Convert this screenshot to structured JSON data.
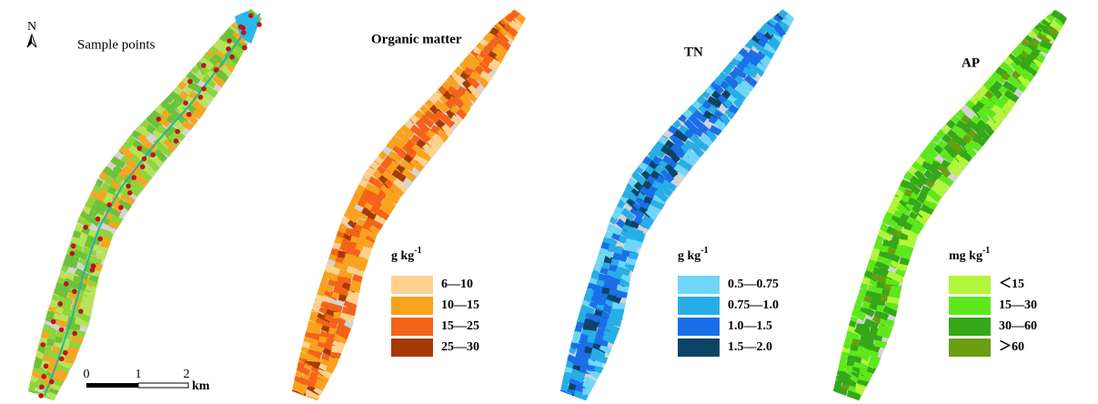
{
  "north": "N",
  "panels": [
    {
      "title": "Sample points"
    },
    {
      "title": "Organic matter",
      "unit": {
        "base": "g kg",
        "exp": "-1"
      },
      "legend": [
        {
          "label": "6—10",
          "color": "#fcd28e"
        },
        {
          "label": "10—15",
          "color": "#f9a21e"
        },
        {
          "label": "15—25",
          "color": "#f4631a"
        },
        {
          "label": "25—30",
          "color": "#a63a05"
        }
      ]
    },
    {
      "title": "TN",
      "unit": {
        "base": "g kg",
        "exp": "-1"
      },
      "legend": [
        {
          "label": "0.5—0.75",
          "color": "#6fd6f7"
        },
        {
          "label": "0.75—1.0",
          "color": "#27aee6"
        },
        {
          "label": "1.0—1.5",
          "color": "#1a6fe8"
        },
        {
          "label": "1.5—2.0",
          "color": "#0d4466"
        }
      ]
    },
    {
      "title": "AP",
      "unit": {
        "base": "mg kg",
        "exp": "-1"
      },
      "legend": [
        {
          "label": "＜15",
          "color": "#b3f53a"
        },
        {
          "label": "15—30",
          "color": "#5ee81c"
        },
        {
          "label": "30—60",
          "color": "#35a81a"
        },
        {
          "label": "＞60",
          "color": "#6b9e12"
        }
      ]
    }
  ],
  "scale_bar": {
    "labels": [
      "0",
      "1",
      "2"
    ],
    "unit": "km"
  }
}
